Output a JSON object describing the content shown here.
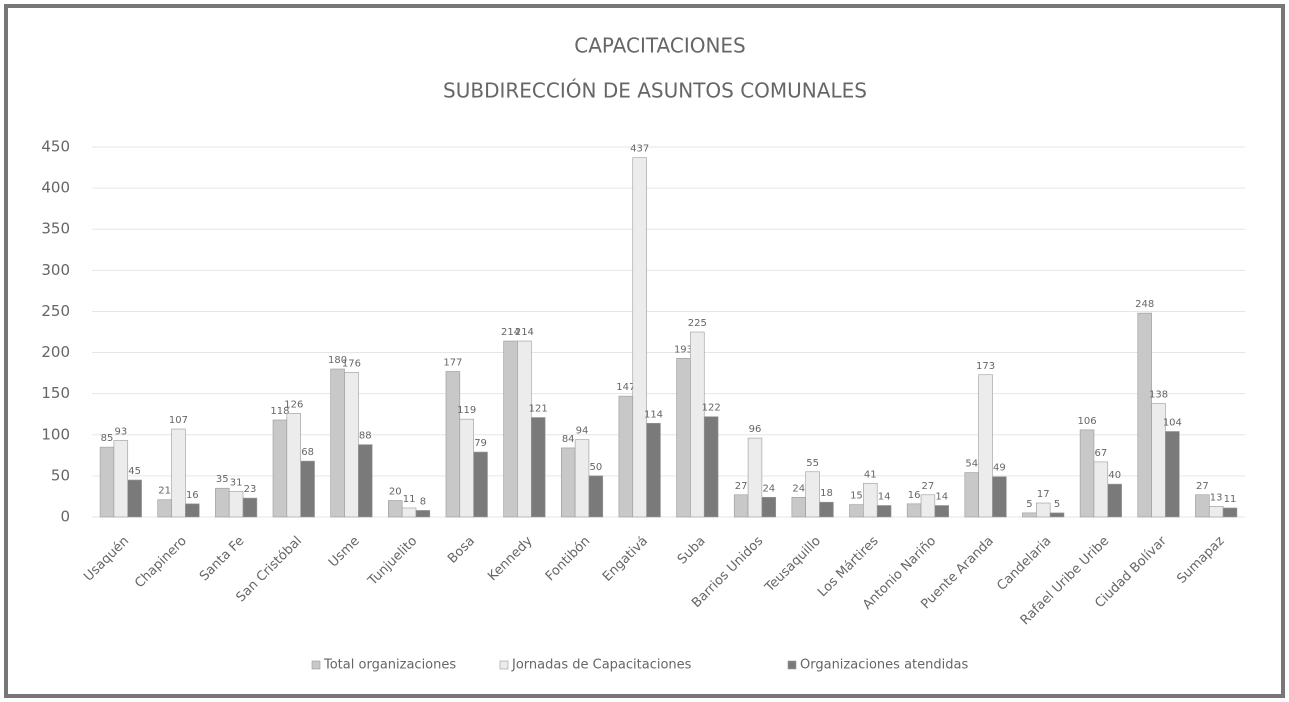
{
  "chart_data": {
    "type": "bar",
    "title": "CAPACITACIONES",
    "subtitle": "SUBDIRECCIÓN DE ASUNTOS COMUNALES",
    "categories": [
      "Usaquén",
      "Chapinero",
      "Santa Fe",
      "San Cristóbal",
      "Usme",
      "Tunjuelito",
      "Bosa",
      "Kennedy",
      "Fontibón",
      "Engativá",
      "Suba",
      "Barrios Unidos",
      "Teusaquillo",
      "Los Mártires",
      "Antonio Nariño",
      "Puente Aranda",
      "Candelaria",
      "Rafael Uribe Uribe",
      "Ciudad Bolívar",
      "Sumapaz"
    ],
    "series": [
      {
        "name": "Total organizaciones",
        "color": "#c8c8c8",
        "values": [
          85,
          21,
          35,
          118,
          180,
          20,
          177,
          214,
          84,
          147,
          193,
          27,
          24,
          15,
          16,
          54,
          5,
          106,
          248,
          27
        ]
      },
      {
        "name": "Jornadas de Capacitaciones",
        "color": "#ececec",
        "values": [
          93,
          107,
          31,
          126,
          176,
          11,
          119,
          214,
          94,
          437,
          225,
          96,
          55,
          41,
          27,
          173,
          17,
          67,
          138,
          13
        ]
      },
      {
        "name": "Organizaciones atendidas",
        "color": "#7a7a7a",
        "values": [
          45,
          16,
          23,
          68,
          88,
          8,
          79,
          121,
          50,
          114,
          122,
          24,
          18,
          14,
          14,
          49,
          5,
          40,
          104,
          11
        ]
      }
    ],
    "ylim": [
      0,
      450
    ],
    "yticks": [
      0,
      50,
      100,
      150,
      200,
      250,
      300,
      350,
      400,
      450
    ],
    "grid": true,
    "legend": "bottom"
  }
}
